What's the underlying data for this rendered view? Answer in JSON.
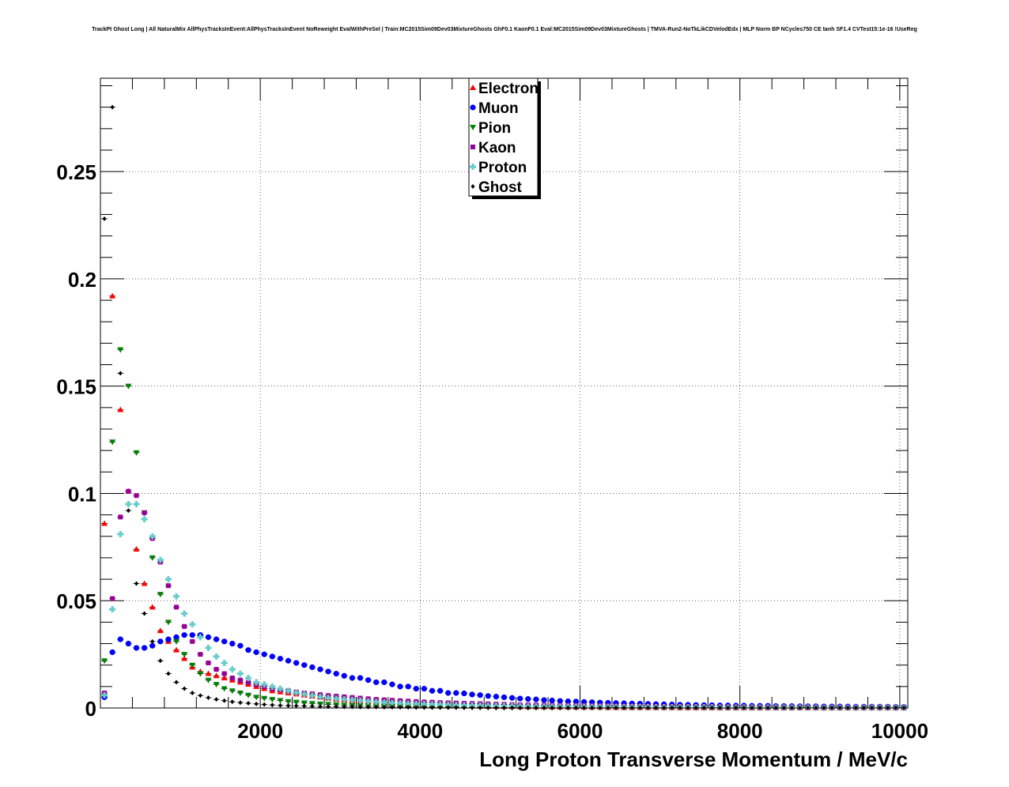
{
  "title": "TrackPt Ghost Long | All NaturalMix AllPhysTracksInEvent:AllPhysTracksInEvent NoReweight EvalWithPreSel | Train:MC2015Sim09Dev03MixtureGhosts GhF0.1 KaonF0.1 Eval:MC2015Sim09Dev03MixtureGhosts | TMVA-Run2-NoTkLikCDVelodEdx | MLP Norm BP NCycles750 CE tanh SF1.4 CVTest15:1e-16 !UseReg",
  "chart_data": {
    "type": "scatter",
    "title": "TrackPt Ghost Long | All NaturalMix AllPhysTracksInEvent:AllPhysTracksInEvent NoReweight EvalWithPreSel | Train:MC2015Sim09Dev03MixtureGhosts GhF0.1 KaonF0.1 Eval:MC2015Sim09Dev03MixtureGhosts | TMVA-Run2-NoTkLikCDVelodEdx | MLP Norm BP NCycles750 CE tanh SF1.4 CVTest15:1e-16 !UseReg",
    "xlabel": "Long Proton Transverse Momentum / MeV/c",
    "ylabel": "",
    "xlim": [
      0,
      10100
    ],
    "ylim": [
      0,
      0.2935
    ],
    "grid": true,
    "legend_position": "top-center",
    "x_ticks": [
      2000,
      4000,
      6000,
      8000,
      10000
    ],
    "x_tick_labels": [
      "2000",
      "4000",
      "6000",
      "8000",
      "10000"
    ],
    "y_ticks": [
      0,
      0.05,
      0.1,
      0.15,
      0.2,
      0.25
    ],
    "y_tick_labels": [
      "0",
      "0.05",
      "0.1",
      "0.15",
      "0.2",
      "0.25"
    ],
    "x": [
      50,
      150,
      250,
      350,
      450,
      550,
      650,
      750,
      850,
      950,
      1050,
      1150,
      1250,
      1350,
      1450,
      1550,
      1650,
      1750,
      1850,
      1950,
      2050,
      2150,
      2250,
      2350,
      2450,
      2550,
      2650,
      2750,
      2850,
      2950,
      3050,
      3150,
      3250,
      3350,
      3450,
      3550,
      3650,
      3750,
      3850,
      3950,
      4050,
      4150,
      4250,
      4350,
      4450,
      4550,
      4650,
      4750,
      4850,
      4950,
      5050,
      5150,
      5250,
      5350,
      5450,
      5550,
      5650,
      5750,
      5850,
      5950,
      6050,
      6150,
      6250,
      6350,
      6450,
      6550,
      6650,
      6750,
      6850,
      6950,
      7050,
      7150,
      7250,
      7350,
      7450,
      7550,
      7650,
      7750,
      7850,
      7950,
      8050,
      8150,
      8250,
      8350,
      8450,
      8550,
      8650,
      8750,
      8850,
      8950,
      9050,
      9150,
      9250,
      9350,
      9450,
      9550,
      9650,
      9750,
      9850,
      9950,
      10050
    ],
    "series": [
      {
        "name": "Electron",
        "marker": "triangle-up",
        "color": "#ff0000",
        "values": [
          0.086,
          0.192,
          0.139,
          0.101,
          0.074,
          0.058,
          0.047,
          0.036,
          0.031,
          0.027,
          0.023,
          0.019,
          0.017,
          0.016,
          0.015,
          0.014,
          0.013,
          0.012,
          0.011,
          0.01,
          0.009,
          0.008,
          0.0075,
          0.007,
          0.0065,
          0.006,
          0.0055,
          0.005,
          0.0045,
          0.004,
          0.0037,
          0.0034,
          0.0031,
          0.0028,
          0.0025,
          0.0023,
          0.0021,
          0.0019,
          0.0017,
          0.0016,
          0.0015,
          0.0014,
          0.0013,
          0.0012,
          0.0011,
          0.001,
          0.0009,
          0.0008,
          0.0007,
          0.0007,
          0.0006,
          0.0006,
          0.0005,
          0.0005,
          0.0005,
          0.0004,
          0.0004,
          0.0004,
          0.0003,
          0.0003,
          0.0003,
          0.0003,
          0.0003,
          0.0002,
          0.0002,
          0.0002,
          0.0002,
          0.0002,
          0.0002,
          0.0002,
          0.0002,
          0.0002,
          0.0001,
          0.0001,
          0.0001,
          0.0001,
          0.0001,
          0.0001,
          0.0001,
          0.0001,
          0.0001,
          0.0001,
          0.0001,
          0.0001,
          0.0001,
          0.0001,
          0.0001,
          0.0001,
          0.0001,
          0.0001,
          0.0001,
          0.0001,
          0.0001,
          0.0001,
          0.0001,
          0.0001,
          0.0001,
          0.0001,
          0.0001,
          0.0001,
          0.0001
        ]
      },
      {
        "name": "Muon",
        "marker": "circle",
        "color": "#0000ff",
        "values": [
          0.005,
          0.026,
          0.032,
          0.03,
          0.028,
          0.028,
          0.029,
          0.031,
          0.032,
          0.033,
          0.034,
          0.034,
          0.034,
          0.033,
          0.032,
          0.031,
          0.03,
          0.029,
          0.027,
          0.026,
          0.025,
          0.024,
          0.023,
          0.022,
          0.021,
          0.02,
          0.019,
          0.018,
          0.017,
          0.016,
          0.015,
          0.014,
          0.014,
          0.013,
          0.012,
          0.012,
          0.011,
          0.01,
          0.01,
          0.009,
          0.009,
          0.008,
          0.008,
          0.007,
          0.007,
          0.0068,
          0.0063,
          0.006,
          0.0056,
          0.0053,
          0.005,
          0.0047,
          0.0044,
          0.0042,
          0.004,
          0.0037,
          0.0035,
          0.0033,
          0.0031,
          0.003,
          0.0028,
          0.0027,
          0.0025,
          0.0024,
          0.0023,
          0.0022,
          0.0021,
          0.002,
          0.0019,
          0.0018,
          0.0017,
          0.0016,
          0.0015,
          0.0015,
          0.0014,
          0.0013,
          0.0013,
          0.0012,
          0.0012,
          0.0011,
          0.0011,
          0.001,
          0.001,
          0.001,
          0.0009,
          0.0009,
          0.0009,
          0.0008,
          0.0008,
          0.0008,
          0.0007,
          0.0007,
          0.0007,
          0.0007,
          0.0006,
          0.0006,
          0.0006,
          0.0006,
          0.0006,
          0.0005,
          0.0005
        ]
      },
      {
        "name": "Pion",
        "marker": "triangle-down",
        "color": "#008000",
        "values": [
          0.022,
          0.124,
          0.167,
          0.15,
          0.119,
          0.091,
          0.07,
          0.053,
          0.04,
          0.031,
          0.025,
          0.02,
          0.016,
          0.013,
          0.011,
          0.009,
          0.008,
          0.007,
          0.006,
          0.005,
          0.0045,
          0.004,
          0.0035,
          0.003,
          0.0027,
          0.0024,
          0.0021,
          0.0019,
          0.0017,
          0.0015,
          0.0013,
          0.0012,
          0.0011,
          0.001,
          0.0009,
          0.0008,
          0.0007,
          0.0007,
          0.0006,
          0.0006,
          0.0005,
          0.0005,
          0.0004,
          0.0004,
          0.0004,
          0.0003,
          0.0003,
          0.0003,
          0.0003,
          0.0002,
          0.0002,
          0.0002,
          0.0002,
          0.0002,
          0.0002,
          0.0002,
          0.0001,
          0.0001,
          0.0001,
          0.0001,
          0.0001,
          0.0001,
          0.0001,
          0.0001,
          0.0001,
          0.0001,
          0.0001,
          0.0001,
          0.0001,
          0.0001,
          0.0001,
          0.0001,
          0.0001,
          0.0001,
          0.0001,
          0.0001,
          0.0001,
          0.0001,
          0.0001,
          0.0001,
          0.0001,
          0.0001,
          0.0001,
          0.0001,
          0.0001,
          0.0001,
          0.0001,
          0.0001,
          0.0001,
          0.0001,
          0.0001,
          0.0001,
          0.0001,
          0.0001,
          0.0001,
          0.0001,
          0.0001,
          0.0001,
          0.0001,
          0.0001,
          0.0001
        ]
      },
      {
        "name": "Kaon",
        "marker": "square",
        "color": "#990099",
        "values": [
          0.007,
          0.051,
          0.089,
          0.101,
          0.099,
          0.091,
          0.079,
          0.068,
          0.057,
          0.047,
          0.038,
          0.031,
          0.025,
          0.021,
          0.018,
          0.016,
          0.014,
          0.013,
          0.012,
          0.011,
          0.01,
          0.009,
          0.0085,
          0.008,
          0.0075,
          0.007,
          0.0066,
          0.0062,
          0.0058,
          0.0055,
          0.0052,
          0.0049,
          0.0046,
          0.0043,
          0.004,
          0.0038,
          0.0036,
          0.0034,
          0.0032,
          0.003,
          0.0028,
          0.0027,
          0.0025,
          0.0024,
          0.0023,
          0.0022,
          0.0021,
          0.002,
          0.0019,
          0.0018,
          0.0017,
          0.0016,
          0.0015,
          0.0015,
          0.0014,
          0.0013,
          0.0013,
          0.0012,
          0.0012,
          0.0011,
          0.0011,
          0.001,
          0.001,
          0.001,
          0.0009,
          0.0009,
          0.0009,
          0.0008,
          0.0008,
          0.0008,
          0.0007,
          0.0007,
          0.0007,
          0.0007,
          0.0006,
          0.0006,
          0.0006,
          0.0006,
          0.0005,
          0.0005,
          0.0005,
          0.0005,
          0.0005,
          0.0004,
          0.0004,
          0.0004,
          0.0004,
          0.0004,
          0.0004,
          0.0003,
          0.0003,
          0.0003,
          0.0003,
          0.0003,
          0.0003,
          0.0003,
          0.0003,
          0.0003,
          0.0003,
          0.0002,
          0.0002
        ]
      },
      {
        "name": "Proton",
        "marker": "cross",
        "color": "#66cccc",
        "values": [
          0.006,
          0.046,
          0.081,
          0.095,
          0.095,
          0.088,
          0.08,
          0.069,
          0.06,
          0.052,
          0.044,
          0.039,
          0.033,
          0.028,
          0.024,
          0.021,
          0.018,
          0.016,
          0.014,
          0.012,
          0.011,
          0.01,
          0.009,
          0.008,
          0.0072,
          0.0065,
          0.0058,
          0.0052,
          0.0047,
          0.0043,
          0.004,
          0.0037,
          0.0034,
          0.0031,
          0.0028,
          0.0026,
          0.0024,
          0.0022,
          0.002,
          0.0019,
          0.0018,
          0.0017,
          0.0016,
          0.0015,
          0.0014,
          0.0013,
          0.0012,
          0.0011,
          0.001,
          0.001,
          0.0009,
          0.0009,
          0.0008,
          0.0008,
          0.0007,
          0.0007,
          0.0007,
          0.0006,
          0.0006,
          0.0006,
          0.0005,
          0.0005,
          0.0005,
          0.0005,
          0.0004,
          0.0004,
          0.0004,
          0.0004,
          0.0004,
          0.0003,
          0.0003,
          0.0003,
          0.0003,
          0.0003,
          0.0003,
          0.0003,
          0.0003,
          0.0002,
          0.0002,
          0.0002,
          0.0002,
          0.0002,
          0.0002,
          0.0002,
          0.0002,
          0.0002,
          0.0002,
          0.0002,
          0.0002,
          0.0002,
          0.0001,
          0.0001,
          0.0001,
          0.0001,
          0.0001,
          0.0001,
          0.0001,
          0.0001,
          0.0001,
          0.0001,
          0.0001
        ]
      },
      {
        "name": "Ghost",
        "marker": "diamond",
        "color": "#000000",
        "values": [
          0.228,
          0.28,
          0.156,
          0.092,
          0.058,
          0.044,
          0.031,
          0.022,
          0.016,
          0.012,
          0.009,
          0.007,
          0.0058,
          0.0048,
          0.004,
          0.0034,
          0.0029,
          0.0025,
          0.0022,
          0.0019,
          0.0016,
          0.0014,
          0.0012,
          0.0011,
          0.001,
          0.0009,
          0.0008,
          0.0007,
          0.0006,
          0.0006,
          0.0005,
          0.0005,
          0.0004,
          0.0004,
          0.0004,
          0.0003,
          0.0003,
          0.0003,
          0.0003,
          0.0002,
          0.0002,
          0.0002,
          0.0002,
          0.0002,
          0.0002,
          0.0001,
          0.0001,
          0.0001,
          0.0001,
          0.0001,
          0.0001,
          0.0001,
          0.0001,
          0.0001,
          0.0001,
          0.0001,
          0.0001,
          0.0001,
          0.0001,
          0.0001,
          0.0001,
          0.0001,
          0.0001,
          0.0001,
          0.0001,
          0.0001,
          0.0001,
          0.0001,
          0.0001,
          0.0001,
          0.0001,
          0.0001,
          0.0001,
          0.0001,
          0.0001,
          0.0001,
          0.0001,
          0.0001,
          0.0001,
          0.0001,
          0.0001,
          0.0001,
          0.0001,
          0.0001,
          0.0001,
          0.0001,
          0.0001,
          0.0001,
          0.0001,
          0.0001,
          0.0001,
          0.0001,
          0.0001,
          0.0001,
          0.0001,
          0.0001,
          0.0001,
          0.0001,
          0.0001,
          0.0001,
          0.0001
        ]
      }
    ]
  }
}
